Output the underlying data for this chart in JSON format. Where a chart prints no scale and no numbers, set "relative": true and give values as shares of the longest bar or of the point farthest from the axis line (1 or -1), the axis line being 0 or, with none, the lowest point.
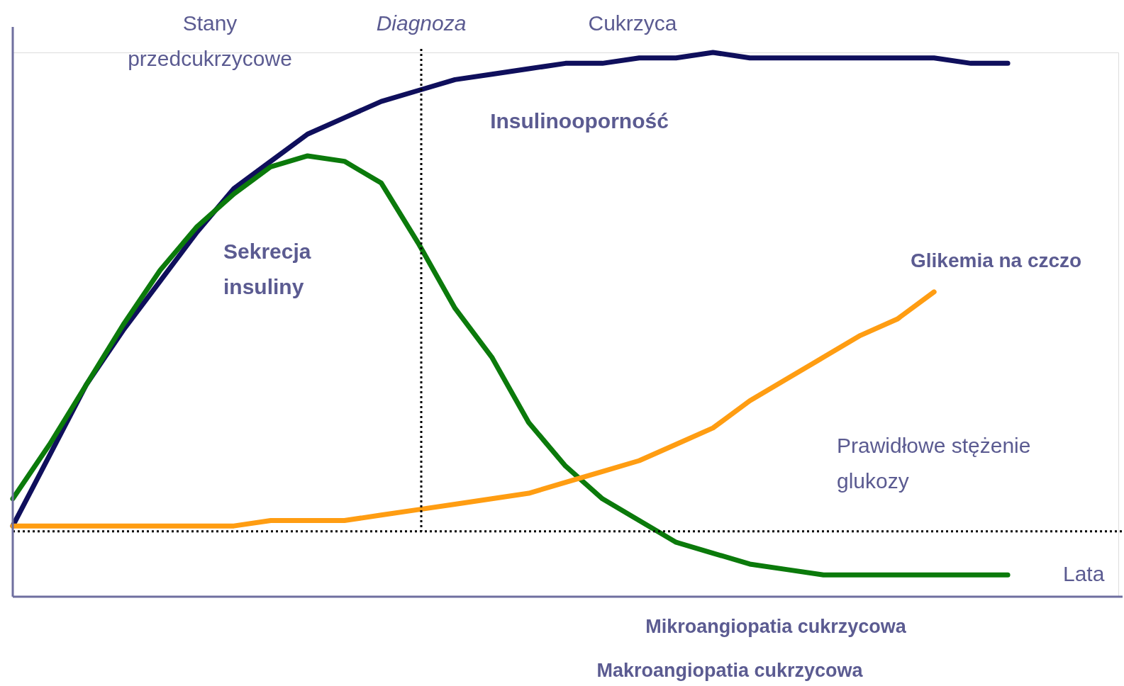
{
  "chart_data": {
    "type": "line",
    "relative": true,
    "xlabel": "Lata",
    "categories": [
      null,
      null,
      null,
      null,
      null,
      null,
      null,
      null,
      null,
      null,
      null,
      null,
      null,
      null,
      null,
      null,
      null,
      null,
      null,
      null,
      null,
      null,
      null,
      null,
      null,
      null,
      null,
      null,
      null,
      null,
      null
    ],
    "series": [
      {
        "name": "Insulinooporność",
        "color": "#0f0f5c",
        "values": [
          0.13,
          0.26,
          0.39,
          0.49,
          0.58,
          0.67,
          0.75,
          0.8,
          0.85,
          0.88,
          0.91,
          0.93,
          0.95,
          0.96,
          0.97,
          0.98,
          0.98,
          0.99,
          0.99,
          1.0,
          0.99,
          0.99,
          0.99,
          0.99,
          0.99,
          0.99,
          0.98,
          0.98,
          null,
          null,
          null
        ]
      },
      {
        "name": "Sekrecja insuliny",
        "color": "#0b7a0b",
        "values": [
          0.18,
          0.28,
          0.39,
          0.5,
          0.6,
          0.68,
          0.74,
          0.79,
          0.81,
          0.8,
          0.76,
          0.65,
          0.53,
          0.44,
          0.32,
          0.24,
          0.18,
          0.14,
          0.1,
          0.08,
          0.06,
          0.05,
          0.04,
          0.04,
          0.04,
          0.04,
          0.04,
          0.04,
          null,
          null,
          null
        ]
      },
      {
        "name": "Glikemia na czczo",
        "color": "#ff9d12",
        "values": [
          0.13,
          0.13,
          0.13,
          0.13,
          0.13,
          0.13,
          0.13,
          0.14,
          0.14,
          0.14,
          0.15,
          0.16,
          0.17,
          0.18,
          0.19,
          0.21,
          0.23,
          0.25,
          0.28,
          0.31,
          0.36,
          0.4,
          0.44,
          0.48,
          0.51,
          0.56,
          null,
          null,
          null,
          null,
          null
        ]
      }
    ],
    "ref_lines": [
      {
        "axis": "y",
        "value": 0.12,
        "label": "Prawidłowe stężenie glukozy",
        "color": "#000000",
        "line_style": "dotted"
      }
    ],
    "annotations": [
      "Stany przedcukrzycowe",
      "Diagnoza",
      "Cukrzyca",
      "Mikroangiopatia cukrzycowa",
      "Makroangiopatia cukrzycowa"
    ]
  }
}
